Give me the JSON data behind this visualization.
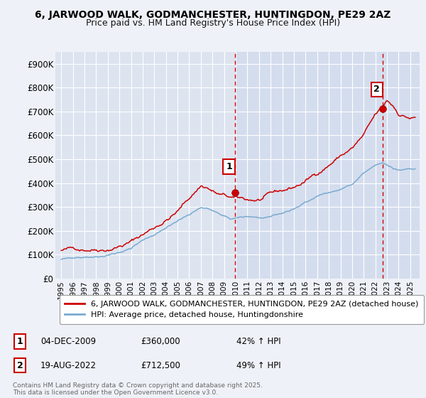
{
  "title": "6, JARWOOD WALK, GODMANCHESTER, HUNTINGDON, PE29 2AZ",
  "subtitle": "Price paid vs. HM Land Registry's House Price Index (HPI)",
  "bg_color": "#eef2f8",
  "plot_bg_left": "#dde4f0",
  "plot_bg_right": "#d5deee",
  "grid_color": "#ffffff",
  "red_color": "#cc0000",
  "blue_color": "#7aaad0",
  "dashed_color": "#cc0000",
  "marker1_x": 2009.92,
  "marker1_y": 360000,
  "marker2_x": 2022.63,
  "marker2_y": 712500,
  "ylim": [
    0,
    950000
  ],
  "xlim": [
    1994.5,
    2025.8
  ],
  "yticks": [
    0,
    100000,
    200000,
    300000,
    400000,
    500000,
    600000,
    700000,
    800000,
    900000
  ],
  "ytick_labels": [
    "£0",
    "£100K",
    "£200K",
    "£300K",
    "£400K",
    "£500K",
    "£600K",
    "£700K",
    "£800K",
    "£900K"
  ],
  "xticks": [
    1995,
    1996,
    1997,
    1998,
    1999,
    2000,
    2001,
    2002,
    2003,
    2004,
    2005,
    2006,
    2007,
    2008,
    2009,
    2010,
    2011,
    2012,
    2013,
    2014,
    2015,
    2016,
    2017,
    2018,
    2019,
    2020,
    2021,
    2022,
    2023,
    2024,
    2025
  ],
  "legend_label_red": "6, JARWOOD WALK, GODMANCHESTER, HUNTINGDON, PE29 2AZ (detached house)",
  "legend_label_blue": "HPI: Average price, detached house, Huntingdonshire",
  "annotation1_num": "1",
  "annotation1_date": "04-DEC-2009",
  "annotation1_price": "£360,000",
  "annotation1_hpi": "42% ↑ HPI",
  "annotation2_num": "2",
  "annotation2_date": "19-AUG-2022",
  "annotation2_price": "£712,500",
  "annotation2_hpi": "49% ↑ HPI",
  "footer": "Contains HM Land Registry data © Crown copyright and database right 2025.\nThis data is licensed under the Open Government Licence v3.0."
}
